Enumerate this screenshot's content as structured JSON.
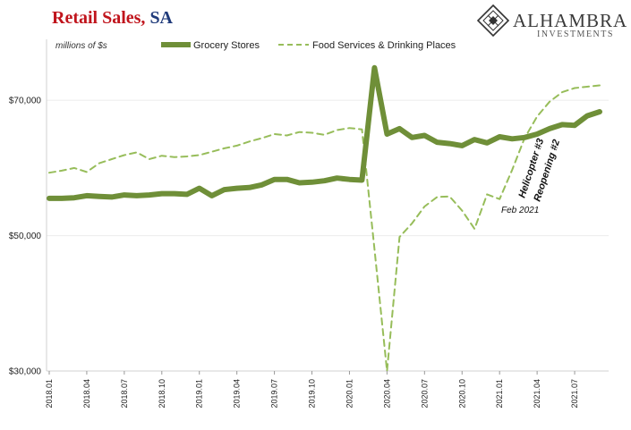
{
  "header": {
    "title_main": "Retail Sales,",
    "title_sub": " SA"
  },
  "logo": {
    "name": "ALHAMBRA",
    "subtitle": "INVESTMENTS",
    "icon": "diamond-lattice-icon"
  },
  "chart_data": {
    "type": "line",
    "units_label": "millions of $s",
    "yticks": [
      {
        "value": 30000,
        "label": "$30,000"
      },
      {
        "value": 50000,
        "label": "$50,000"
      },
      {
        "value": 70000,
        "label": "$70,000"
      }
    ],
    "ylim": [
      30000,
      79000
    ],
    "xtick_labels": [
      "2018.01",
      "2018.04",
      "2018.07",
      "2018.10",
      "2019.01",
      "2019.04",
      "2019.07",
      "2019.10",
      "2020.01",
      "2020.04",
      "2020.07",
      "2020.10",
      "2021.01",
      "2021.04",
      "2021.07"
    ],
    "x_start": "2018.01",
    "grid": "horizontal",
    "legend_position": "top",
    "series": [
      {
        "name": "Grocery Stores",
        "style": "solid",
        "color": "#6f8f38",
        "values": [
          55500,
          55500,
          55600,
          55900,
          55800,
          55700,
          56000,
          55900,
          56000,
          56200,
          56200,
          56100,
          57000,
          55900,
          56800,
          57000,
          57100,
          57500,
          58300,
          58300,
          57800,
          57900,
          58100,
          58500,
          58300,
          58200,
          74800,
          65000,
          65800,
          64500,
          64800,
          63800,
          63600,
          63300,
          64200,
          63700,
          64600,
          64300,
          64500,
          65000,
          65800,
          66400,
          66300,
          67700,
          68300
        ]
      },
      {
        "name": "Food Services & Drinking Places",
        "style": "dashed",
        "color": "#97bd5a",
        "values": [
          59300,
          59600,
          60000,
          59400,
          60700,
          61300,
          61900,
          62300,
          61300,
          61800,
          61600,
          61700,
          61900,
          62400,
          62900,
          63300,
          63900,
          64400,
          65000,
          64800,
          65300,
          65200,
          64900,
          65600,
          65900,
          65700,
          48000,
          30000,
          49800,
          51800,
          54300,
          55700,
          55800,
          53700,
          51000,
          56100,
          55400,
          59700,
          64400,
          67600,
          69800,
          71200,
          71800,
          72000,
          72200
        ]
      }
    ],
    "annotations": [
      {
        "text": "Helicopter #3",
        "style": "bold-rotated"
      },
      {
        "text": "Reopening #2",
        "style": "bold-rotated"
      },
      {
        "text": "Feb 2021",
        "style": "italic"
      }
    ]
  }
}
